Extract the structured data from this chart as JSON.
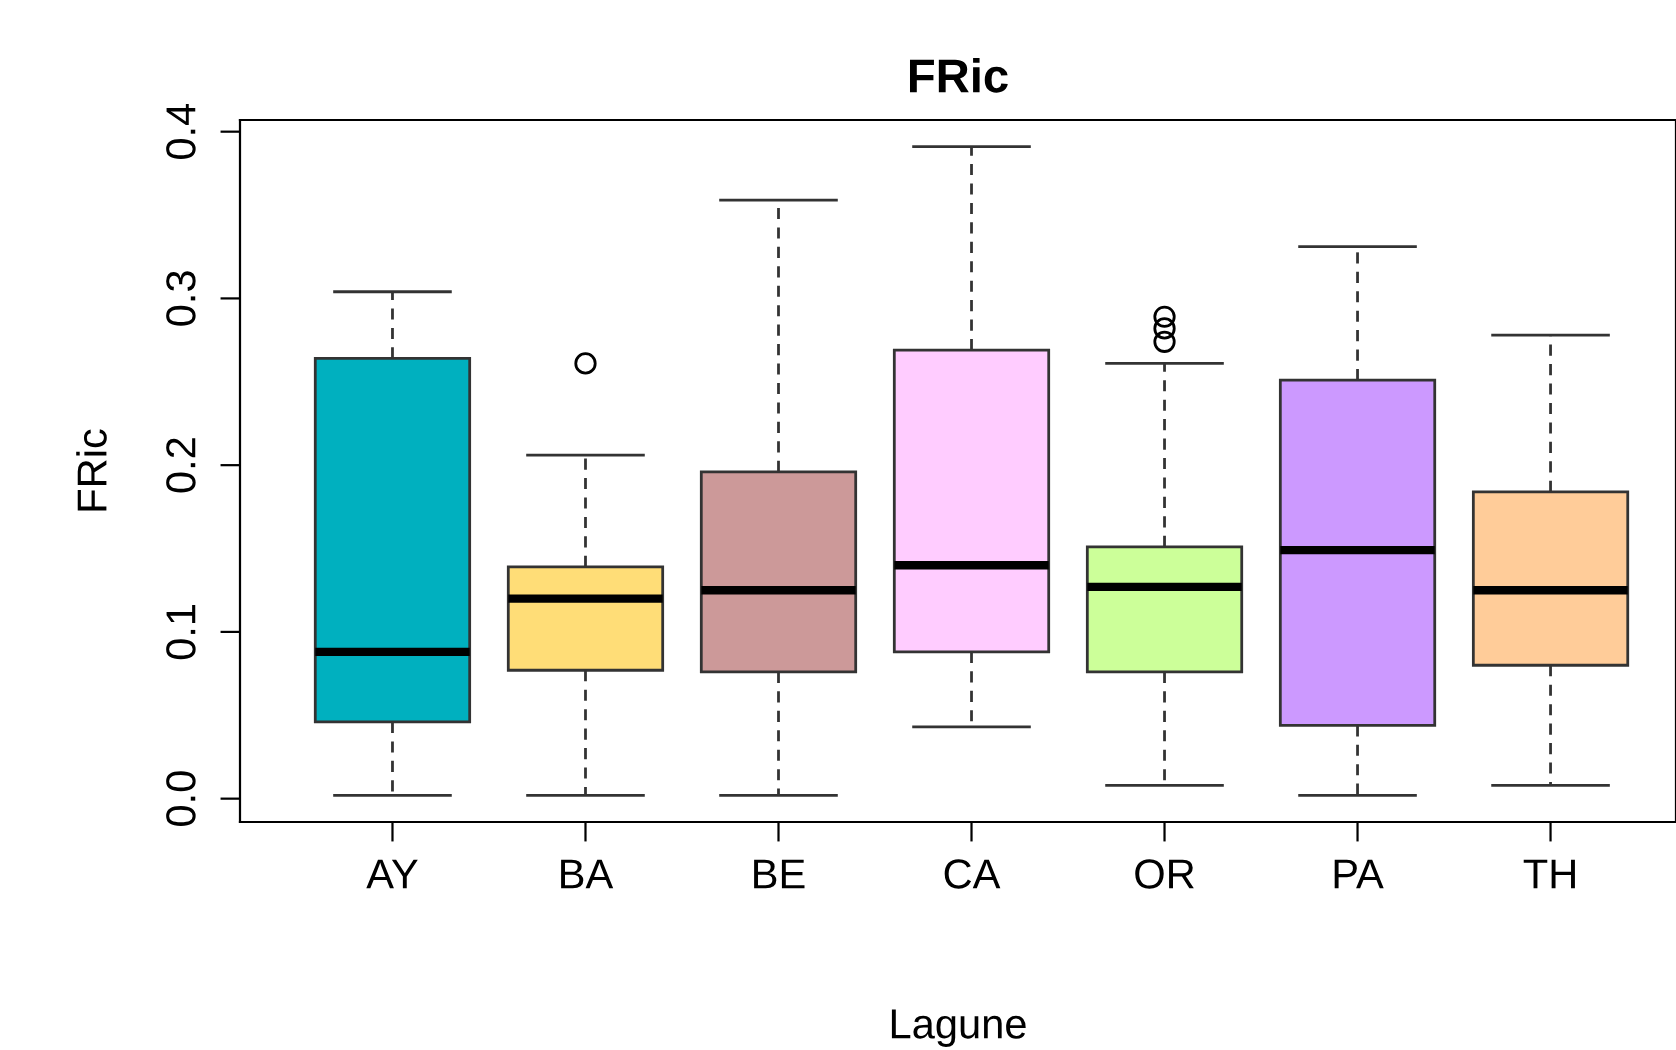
{
  "chart_data": {
    "type": "box",
    "title": "FRic",
    "xlabel": "Lagune",
    "ylabel": "FRic",
    "categories": [
      "AY",
      "BA",
      "BE",
      "CA",
      "OR",
      "PA",
      "TH"
    ],
    "colors": [
      "#00b0bf",
      "#ffdd77",
      "#cc9999",
      "#ffccff",
      "#ccff99",
      "#cc99ff",
      "#ffcc99"
    ],
    "boxes": [
      {
        "low": 0.002,
        "q1": 0.046,
        "median": 0.088,
        "q3": 0.264,
        "high": 0.304
      },
      {
        "low": 0.002,
        "q1": 0.077,
        "median": 0.12,
        "q3": 0.139,
        "high": 0.206,
        "outliers": [
          0.261
        ]
      },
      {
        "low": 0.002,
        "q1": 0.076,
        "median": 0.125,
        "q3": 0.196,
        "high": 0.359
      },
      {
        "low": 0.043,
        "q1": 0.088,
        "median": 0.14,
        "q3": 0.269,
        "high": 0.391
      },
      {
        "low": 0.008,
        "q1": 0.076,
        "median": 0.127,
        "q3": 0.151,
        "high": 0.261,
        "outliers": [
          0.274,
          0.282,
          0.289
        ]
      },
      {
        "low": 0.002,
        "q1": 0.044,
        "median": 0.149,
        "q3": 0.251,
        "high": 0.331
      },
      {
        "low": 0.008,
        "q1": 0.08,
        "median": 0.125,
        "q3": 0.184,
        "high": 0.278
      }
    ],
    "ylim": [
      -0.014,
      0.407
    ],
    "yticks": [
      {
        "value": 0,
        "label": "0.0"
      },
      0.1,
      0.2,
      0.3,
      0.4
    ],
    "grid": false,
    "line_style": "dashed"
  }
}
